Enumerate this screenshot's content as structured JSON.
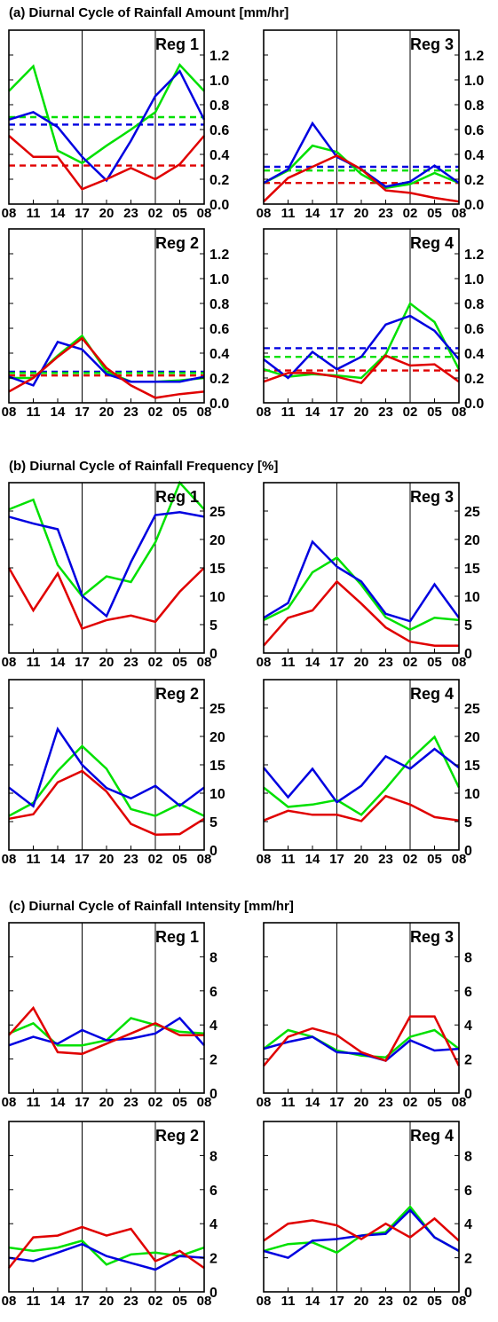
{
  "figure": {
    "x_labels": [
      "08",
      "11",
      "14",
      "17",
      "20",
      "23",
      "02",
      "05",
      "08"
    ],
    "series_colors": {
      "green": "#00e000",
      "blue": "#0000e0",
      "red": "#e00000"
    },
    "sections": [
      {
        "title": "(a) Diurnal Cycle of Rainfall Amount [mm/hr]",
        "ylim": [
          0,
          1.4
        ],
        "yticks": [
          0.2,
          0.4,
          0.6,
          0.8,
          1.0,
          1.2
        ],
        "zero_label": "0.0",
        "tick_decimals": 1,
        "show_zero_label": true
      },
      {
        "title": "(b) Diurnal Cycle of Rainfall Frequency [%]",
        "ylim": [
          0,
          30
        ],
        "yticks": [
          5,
          10,
          15,
          20,
          25
        ],
        "zero_label": "0",
        "tick_decimals": 0,
        "show_zero_label": true
      },
      {
        "title": "(c) Diurnal Cycle of Rainfall Intensity [mm/hr]",
        "ylim": [
          0,
          10
        ],
        "yticks": [
          2,
          4,
          6,
          8
        ],
        "zero_label": "0",
        "tick_decimals": 0,
        "show_zero_label": true
      }
    ]
  },
  "chart_data": [
    {
      "type": "line",
      "title": "(a) Diurnal Cycle of Rainfall Amount [mm/hr]",
      "panel": "Reg 1",
      "categories": [
        "08",
        "11",
        "14",
        "17",
        "20",
        "23",
        "02",
        "05",
        "08"
      ],
      "ylim": [
        0,
        1.4
      ],
      "series": [
        {
          "color": "green",
          "values": [
            0.91,
            1.11,
            0.43,
            0.33,
            0.47,
            0.6,
            0.74,
            1.12,
            0.91
          ]
        },
        {
          "color": "blue",
          "values": [
            0.68,
            0.74,
            0.62,
            0.38,
            0.19,
            0.51,
            0.87,
            1.07,
            0.68
          ]
        },
        {
          "color": "red",
          "values": [
            0.55,
            0.38,
            0.38,
            0.12,
            0.2,
            0.29,
            0.2,
            0.32,
            0.55
          ]
        }
      ],
      "hlines": [
        {
          "color": "green",
          "value": 0.7,
          "style": "dashed"
        },
        {
          "color": "blue",
          "value": 0.64,
          "style": "dashed"
        },
        {
          "color": "red",
          "value": 0.31,
          "style": "dashed"
        }
      ]
    },
    {
      "type": "line",
      "title": "(a) Diurnal Cycle of Rainfall Amount [mm/hr]",
      "panel": "Reg 3",
      "categories": [
        "08",
        "11",
        "14",
        "17",
        "20",
        "23",
        "02",
        "05",
        "08"
      ],
      "ylim": [
        0,
        1.4
      ],
      "series": [
        {
          "color": "green",
          "values": [
            0.17,
            0.27,
            0.47,
            0.42,
            0.24,
            0.13,
            0.16,
            0.25,
            0.17
          ]
        },
        {
          "color": "blue",
          "values": [
            0.17,
            0.28,
            0.65,
            0.38,
            0.28,
            0.14,
            0.18,
            0.31,
            0.17
          ]
        },
        {
          "color": "red",
          "values": [
            0.02,
            0.21,
            0.3,
            0.39,
            0.28,
            0.11,
            0.09,
            0.05,
            0.02
          ]
        }
      ],
      "hlines": [
        {
          "color": "blue",
          "value": 0.3,
          "style": "dashed"
        },
        {
          "color": "green",
          "value": 0.27,
          "style": "dashed"
        },
        {
          "color": "red",
          "value": 0.17,
          "style": "dashed"
        }
      ]
    },
    {
      "type": "line",
      "title": "(a) Diurnal Cycle of Rainfall Amount [mm/hr]",
      "panel": "Reg 2",
      "categories": [
        "08",
        "11",
        "14",
        "17",
        "20",
        "23",
        "02",
        "05",
        "08"
      ],
      "ylim": [
        0,
        1.4
      ],
      "series": [
        {
          "color": "green",
          "values": [
            0.2,
            0.2,
            0.38,
            0.54,
            0.25,
            0.17,
            0.17,
            0.18,
            0.2
          ]
        },
        {
          "color": "blue",
          "values": [
            0.21,
            0.14,
            0.49,
            0.43,
            0.23,
            0.17,
            0.17,
            0.17,
            0.21
          ]
        },
        {
          "color": "red",
          "values": [
            0.09,
            0.2,
            0.37,
            0.52,
            0.28,
            0.14,
            0.04,
            0.07,
            0.09
          ]
        }
      ],
      "hlines": [
        {
          "color": "blue",
          "value": 0.25,
          "style": "dashed"
        },
        {
          "color": "green",
          "value": 0.24,
          "style": "dashed"
        },
        {
          "color": "red",
          "value": 0.22,
          "style": "dashed"
        }
      ]
    },
    {
      "type": "line",
      "title": "(a) Diurnal Cycle of Rainfall Amount [mm/hr]",
      "panel": "Reg 4",
      "categories": [
        "08",
        "11",
        "14",
        "17",
        "20",
        "23",
        "02",
        "05",
        "08"
      ],
      "ylim": [
        0,
        1.4
      ],
      "series": [
        {
          "color": "green",
          "values": [
            0.27,
            0.21,
            0.23,
            0.22,
            0.2,
            0.39,
            0.8,
            0.65,
            0.27
          ]
        },
        {
          "color": "blue",
          "values": [
            0.35,
            0.2,
            0.41,
            0.27,
            0.37,
            0.63,
            0.7,
            0.58,
            0.35
          ]
        },
        {
          "color": "red",
          "values": [
            0.17,
            0.24,
            0.24,
            0.21,
            0.16,
            0.38,
            0.3,
            0.31,
            0.17
          ]
        }
      ],
      "hlines": [
        {
          "color": "blue",
          "value": 0.44,
          "style": "dashed"
        },
        {
          "color": "green",
          "value": 0.37,
          "style": "dashed"
        },
        {
          "color": "red",
          "value": 0.26,
          "style": "dashed"
        }
      ]
    },
    {
      "type": "line",
      "title": "(b) Diurnal Cycle of Rainfall Frequency [%]",
      "panel": "Reg 1",
      "categories": [
        "08",
        "11",
        "14",
        "17",
        "20",
        "23",
        "02",
        "05",
        "08"
      ],
      "ylim": [
        0,
        30
      ],
      "series": [
        {
          "color": "green",
          "values": [
            25.3,
            27.0,
            15.5,
            10.0,
            13.5,
            12.5,
            19.5,
            30.0,
            25.3
          ]
        },
        {
          "color": "blue",
          "values": [
            24.0,
            22.8,
            21.8,
            10.1,
            6.5,
            16.0,
            24.3,
            24.8,
            24.0
          ]
        },
        {
          "color": "red",
          "values": [
            15.0,
            7.5,
            14.0,
            4.3,
            5.8,
            6.6,
            5.5,
            10.8,
            15.0
          ]
        }
      ]
    },
    {
      "type": "line",
      "title": "(b) Diurnal Cycle of Rainfall Frequency [%]",
      "panel": "Reg 3",
      "categories": [
        "08",
        "11",
        "14",
        "17",
        "20",
        "23",
        "02",
        "05",
        "08"
      ],
      "ylim": [
        0,
        30
      ],
      "series": [
        {
          "color": "green",
          "values": [
            5.8,
            7.9,
            14.2,
            16.8,
            12.0,
            6.3,
            4.1,
            6.2,
            5.8
          ]
        },
        {
          "color": "blue",
          "values": [
            6.2,
            8.8,
            19.6,
            15.2,
            12.6,
            6.9,
            5.6,
            12.1,
            6.2
          ]
        },
        {
          "color": "red",
          "values": [
            1.3,
            6.2,
            7.5,
            12.6,
            8.7,
            4.5,
            2.0,
            1.3,
            1.3
          ]
        }
      ]
    },
    {
      "type": "line",
      "title": "(b) Diurnal Cycle of Rainfall Frequency [%]",
      "panel": "Reg 2",
      "categories": [
        "08",
        "11",
        "14",
        "17",
        "20",
        "23",
        "02",
        "05",
        "08"
      ],
      "ylim": [
        0,
        30
      ],
      "series": [
        {
          "color": "green",
          "values": [
            6.0,
            8.3,
            13.9,
            18.3,
            14.3,
            7.2,
            6.0,
            8.1,
            6.0
          ]
        },
        {
          "color": "blue",
          "values": [
            11.0,
            7.7,
            21.3,
            15.0,
            10.9,
            9.1,
            11.3,
            7.8,
            11.0
          ]
        },
        {
          "color": "red",
          "values": [
            5.5,
            6.3,
            11.9,
            13.9,
            10.3,
            4.6,
            2.7,
            2.8,
            5.5
          ]
        }
      ]
    },
    {
      "type": "line",
      "title": "(b) Diurnal Cycle of Rainfall Frequency [%]",
      "panel": "Reg 4",
      "categories": [
        "08",
        "11",
        "14",
        "17",
        "20",
        "23",
        "02",
        "05",
        "08"
      ],
      "ylim": [
        0,
        30
      ],
      "series": [
        {
          "color": "green",
          "values": [
            11.0,
            7.6,
            8.0,
            8.8,
            6.2,
            10.8,
            15.9,
            19.9,
            11.0
          ]
        },
        {
          "color": "blue",
          "values": [
            14.5,
            9.3,
            14.3,
            8.4,
            11.3,
            16.5,
            14.3,
            17.8,
            14.5
          ]
        },
        {
          "color": "red",
          "values": [
            5.2,
            6.9,
            6.2,
            6.2,
            5.1,
            9.5,
            8.0,
            5.8,
            5.2
          ]
        }
      ]
    },
    {
      "type": "line",
      "title": "(c) Diurnal Cycle of Rainfall Intensity [mm/hr]",
      "panel": "Reg 1",
      "categories": [
        "08",
        "11",
        "14",
        "17",
        "20",
        "23",
        "02",
        "05",
        "08"
      ],
      "ylim": [
        0,
        10
      ],
      "series": [
        {
          "color": "green",
          "values": [
            3.5,
            4.1,
            2.8,
            2.8,
            3.1,
            4.4,
            4.0,
            3.6,
            3.5
          ]
        },
        {
          "color": "blue",
          "values": [
            2.8,
            3.3,
            2.9,
            3.7,
            3.1,
            3.2,
            3.5,
            4.4,
            2.8
          ]
        },
        {
          "color": "red",
          "values": [
            3.4,
            5.0,
            2.4,
            2.3,
            2.9,
            3.5,
            4.1,
            3.4,
            3.4
          ]
        }
      ]
    },
    {
      "type": "line",
      "title": "(c) Diurnal Cycle of Rainfall Intensity [mm/hr]",
      "panel": "Reg 3",
      "categories": [
        "08",
        "11",
        "14",
        "17",
        "20",
        "23",
        "02",
        "05",
        "08"
      ],
      "ylim": [
        0,
        10
      ],
      "series": [
        {
          "color": "green",
          "values": [
            2.6,
            3.7,
            3.3,
            2.5,
            2.2,
            2.1,
            3.3,
            3.7,
            2.6
          ]
        },
        {
          "color": "blue",
          "values": [
            2.6,
            3.0,
            3.3,
            2.4,
            2.3,
            1.9,
            3.1,
            2.5,
            2.6
          ]
        },
        {
          "color": "red",
          "values": [
            1.6,
            3.3,
            3.8,
            3.4,
            2.4,
            1.9,
            4.5,
            4.5,
            1.6
          ]
        }
      ]
    },
    {
      "type": "line",
      "title": "(c) Diurnal Cycle of Rainfall Intensity [mm/hr]",
      "panel": "Reg 2",
      "categories": [
        "08",
        "11",
        "14",
        "17",
        "20",
        "23",
        "02",
        "05",
        "08"
      ],
      "ylim": [
        0,
        10
      ],
      "series": [
        {
          "color": "green",
          "values": [
            2.6,
            2.4,
            2.6,
            3.0,
            1.6,
            2.2,
            2.3,
            2.1,
            2.6
          ]
        },
        {
          "color": "blue",
          "values": [
            2.0,
            1.8,
            2.3,
            2.8,
            2.1,
            1.7,
            1.3,
            2.1,
            2.0
          ]
        },
        {
          "color": "red",
          "values": [
            1.4,
            3.2,
            3.3,
            3.8,
            3.3,
            3.7,
            1.8,
            2.4,
            1.4
          ]
        }
      ]
    },
    {
      "type": "line",
      "title": "(c) Diurnal Cycle of Rainfall Intensity [mm/hr]",
      "panel": "Reg 4",
      "categories": [
        "08",
        "11",
        "14",
        "17",
        "20",
        "23",
        "02",
        "05",
        "08"
      ],
      "ylim": [
        0,
        10
      ],
      "series": [
        {
          "color": "green",
          "values": [
            2.4,
            2.8,
            2.9,
            2.3,
            3.3,
            3.5,
            5.0,
            3.2,
            2.4
          ]
        },
        {
          "color": "blue",
          "values": [
            2.4,
            2.0,
            3.0,
            3.1,
            3.3,
            3.4,
            4.8,
            3.2,
            2.4
          ]
        },
        {
          "color": "red",
          "values": [
            3.0,
            4.0,
            4.2,
            3.9,
            3.1,
            4.0,
            3.2,
            4.3,
            3.0
          ]
        }
      ]
    }
  ]
}
